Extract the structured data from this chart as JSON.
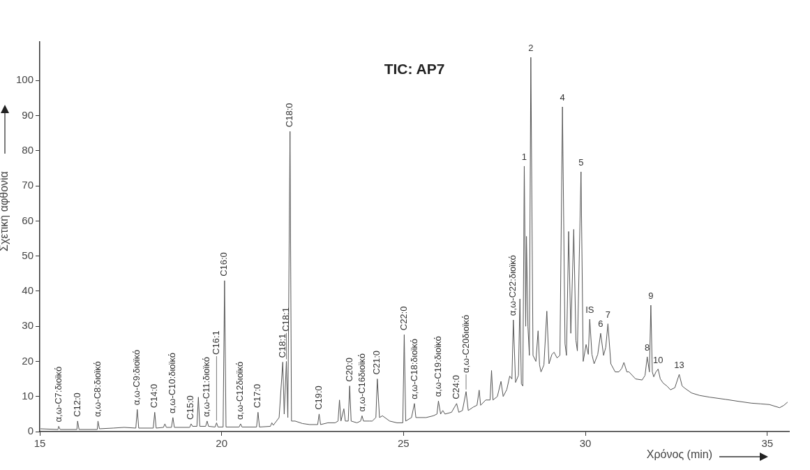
{
  "chart_data": {
    "type": "line",
    "title": "TIC: AP7",
    "xlabel": "Χρόνος (min)",
    "ylabel": "Σχετική αφθονία",
    "xlim": [
      15,
      35.6
    ],
    "ylim": [
      0,
      111
    ],
    "xticks": [
      15,
      20,
      25,
      30,
      35
    ],
    "yticks": [
      0,
      10,
      20,
      30,
      40,
      50,
      60,
      70,
      80,
      90,
      100
    ],
    "marker": "none",
    "line_style": "solid",
    "series": [
      {
        "color": "#555555",
        "x": [
          15.02,
          15.5,
          15.52,
          15.56,
          16.02,
          16.04,
          16.08,
          16.58,
          16.6,
          16.64,
          17.02,
          17.32,
          17.64,
          17.68,
          17.72,
          18.12,
          18.16,
          18.2,
          18.4,
          18.44,
          18.48,
          18.62,
          18.66,
          18.7,
          19.12,
          19.16,
          19.2,
          19.32,
          19.36,
          19.4,
          19.56,
          19.6,
          19.64,
          19.82,
          19.86,
          19.9,
          20.04,
          20.08,
          20.12,
          20.48,
          20.52,
          20.56,
          20.96,
          21.0,
          21.04,
          21.34,
          21.38,
          21.42,
          21.58,
          21.68,
          21.72,
          21.78,
          21.82,
          21.88,
          21.92,
          22.02,
          22.22,
          22.42,
          22.64,
          22.68,
          22.72,
          22.92,
          23.12,
          23.2,
          23.24,
          23.28,
          23.36,
          23.4,
          23.48,
          23.52,
          23.56,
          23.72,
          23.82,
          23.86,
          23.9,
          24.06,
          24.14,
          24.24,
          24.28,
          24.34,
          24.42,
          24.62,
          24.82,
          24.98,
          25.02,
          25.06,
          25.22,
          25.3,
          25.34,
          25.62,
          25.82,
          25.92,
          25.96,
          26.02,
          26.08,
          26.14,
          26.32,
          26.46,
          26.52,
          26.62,
          26.72,
          26.78,
          26.92,
          27.02,
          27.08,
          27.12,
          27.26,
          27.38,
          27.42,
          27.46,
          27.58,
          27.68,
          27.74,
          27.84,
          27.92,
          27.98,
          28.02,
          28.08,
          28.16,
          28.2,
          28.24,
          28.28,
          28.32,
          28.36,
          28.38,
          28.42,
          28.46,
          28.5,
          28.56,
          28.64,
          28.7,
          28.74,
          28.78,
          28.86,
          28.94,
          29.0,
          29.08,
          29.14,
          29.22,
          29.3,
          29.37,
          29.44,
          29.48,
          29.54,
          29.6,
          29.68,
          29.74,
          29.78,
          29.88,
          29.94,
          30.02,
          30.08,
          30.12,
          30.18,
          30.24,
          30.34,
          30.42,
          30.5,
          30.56,
          30.62,
          30.7,
          30.82,
          30.92,
          31.0,
          31.06,
          31.14,
          31.2,
          31.38,
          31.56,
          31.64,
          31.7,
          31.76,
          31.8,
          31.84,
          31.88,
          31.94,
          32.0,
          32.06,
          32.14,
          32.24,
          32.34,
          32.46,
          32.58,
          32.66,
          32.74,
          32.92,
          33.14,
          33.42,
          33.84,
          34.22,
          34.56,
          34.82,
          35.06,
          35.34,
          35.46,
          35.56
        ],
        "values": [
          0.8,
          0.6,
          1.5,
          0.6,
          0.6,
          3.0,
          0.6,
          0.6,
          3.0,
          0.8,
          1.0,
          1.2,
          1.0,
          6.3,
          1.0,
          1.0,
          5.5,
          1.0,
          1.2,
          2.2,
          1.2,
          1.2,
          4.0,
          1.2,
          1.2,
          2.2,
          1.5,
          1.5,
          9.8,
          1.5,
          1.5,
          3.0,
          1.5,
          1.3,
          2.5,
          1.3,
          1.3,
          43,
          1.3,
          1.3,
          2.2,
          1.3,
          1.3,
          5.5,
          1.3,
          1.5,
          2.5,
          1.8,
          4,
          19.8,
          5,
          20,
          4,
          85.5,
          3,
          3,
          2.3,
          2,
          2,
          5,
          2,
          2.5,
          2.5,
          3,
          9,
          3,
          6.5,
          3,
          3,
          13,
          3,
          2.5,
          3,
          4.5,
          3,
          3,
          3,
          4,
          15,
          4,
          4.5,
          3,
          2.5,
          2.5,
          27.6,
          3,
          4,
          8,
          4,
          4,
          4.5,
          5,
          8.7,
          5,
          6,
          5,
          5.5,
          8,
          5.5,
          6,
          11.4,
          6,
          7,
          7.5,
          11.8,
          7.5,
          9,
          9,
          17.4,
          9,
          10,
          14.3,
          10,
          12,
          15.8,
          15,
          31.8,
          14,
          16,
          37.8,
          13.6,
          13,
          75.6,
          30,
          55.6,
          30,
          21.7,
          106.6,
          21.7,
          20,
          28.7,
          19,
          17,
          19,
          34.3,
          19.3,
          22,
          22.6,
          21,
          21.7,
          92.5,
          25,
          21.7,
          57,
          28,
          57.6,
          26,
          23,
          74,
          20,
          24.8,
          22,
          32,
          22,
          19.3,
          22,
          28,
          21.7,
          24,
          30.7,
          19.3,
          17,
          17,
          18,
          19.7,
          17,
          17,
          15,
          14.7,
          16,
          21.3,
          17,
          36,
          17,
          15.6,
          17,
          17.8,
          15,
          13.8,
          13,
          11.9,
          12.5,
          16.3,
          13,
          12.3,
          11,
          10.3,
          9.8,
          9.2,
          8.6,
          8.1,
          7.9,
          7.7,
          6.8,
          7.5,
          8.4
        ]
      }
    ],
    "annotations": [
      {
        "text": "α,ω-C7:διοϊκό",
        "x": 15.52,
        "y": 1.5
      },
      {
        "text": "C12:0",
        "x": 16.04,
        "y": 3.0
      },
      {
        "text": "α,ω-C8:διοϊκό",
        "x": 16.6,
        "y": 3.0
      },
      {
        "text": "α,ω-C9:διοϊκό",
        "x": 17.68,
        "y": 6.3
      },
      {
        "text": "C14:0",
        "x": 18.16,
        "y": 5.5
      },
      {
        "text": "α,ω-C10:διοϊκό",
        "x": 18.66,
        "y": 4.0
      },
      {
        "text": "C15:0",
        "x": 19.16,
        "y": 2.2
      },
      {
        "text": "α,ω-C11:διοϊκό",
        "x": 19.6,
        "y": 3.0
      },
      {
        "text": "C16:1",
        "x": 19.86,
        "y": 2.5
      },
      {
        "text": "C16:0",
        "x": 20.08,
        "y": 43
      },
      {
        "text": "α,ω-C12διοϊκό",
        "x": 20.52,
        "y": 2.2
      },
      {
        "text": "C17:0",
        "x": 21.0,
        "y": 5.5
      },
      {
        "text": "C18:1",
        "x": 21.68,
        "y": 19.8
      },
      {
        "text": "C18:1",
        "x": 21.78,
        "y": 20
      },
      {
        "text": "C18:0",
        "x": 21.88,
        "y": 85.5
      },
      {
        "text": "C19:0",
        "x": 22.68,
        "y": 5
      },
      {
        "text": "C20:0",
        "x": 23.52,
        "y": 13
      },
      {
        "text": "α,ω-C16διοϊκό",
        "x": 23.86,
        "y": 4.5
      },
      {
        "text": "C21:0",
        "x": 24.28,
        "y": 15
      },
      {
        "text": "C22:0",
        "x": 25.02,
        "y": 27.6
      },
      {
        "text": "α,ω-C18:διοϊκό",
        "x": 25.3,
        "y": 8
      },
      {
        "text": "α,ω-C19:διοϊκό",
        "x": 25.96,
        "y": 8.7
      },
      {
        "text": "C24:0",
        "x": 26.46,
        "y": 8
      },
      {
        "text": "α,ω-C20διοϊκό",
        "x": 26.72,
        "y": 11.4
      },
      {
        "text": "α,ω-C22:διοϊκό",
        "x": 28.02,
        "y": 31.8
      },
      {
        "text": "1",
        "x": 28.32,
        "y": 75.6
      },
      {
        "text": "2",
        "x": 28.5,
        "y": 106.6
      },
      {
        "text": "4",
        "x": 29.37,
        "y": 92.5
      },
      {
        "text": "5",
        "x": 29.88,
        "y": 74
      },
      {
        "text": "IS",
        "x": 30.12,
        "y": 32
      },
      {
        "text": "6",
        "x": 30.42,
        "y": 28
      },
      {
        "text": "7",
        "x": 30.62,
        "y": 30.7
      },
      {
        "text": "8",
        "x": 31.7,
        "y": 21.3
      },
      {
        "text": "9",
        "x": 31.8,
        "y": 36
      },
      {
        "text": "10",
        "x": 32.0,
        "y": 17.8
      },
      {
        "text": "13",
        "x": 32.58,
        "y": 16.3
      }
    ]
  }
}
